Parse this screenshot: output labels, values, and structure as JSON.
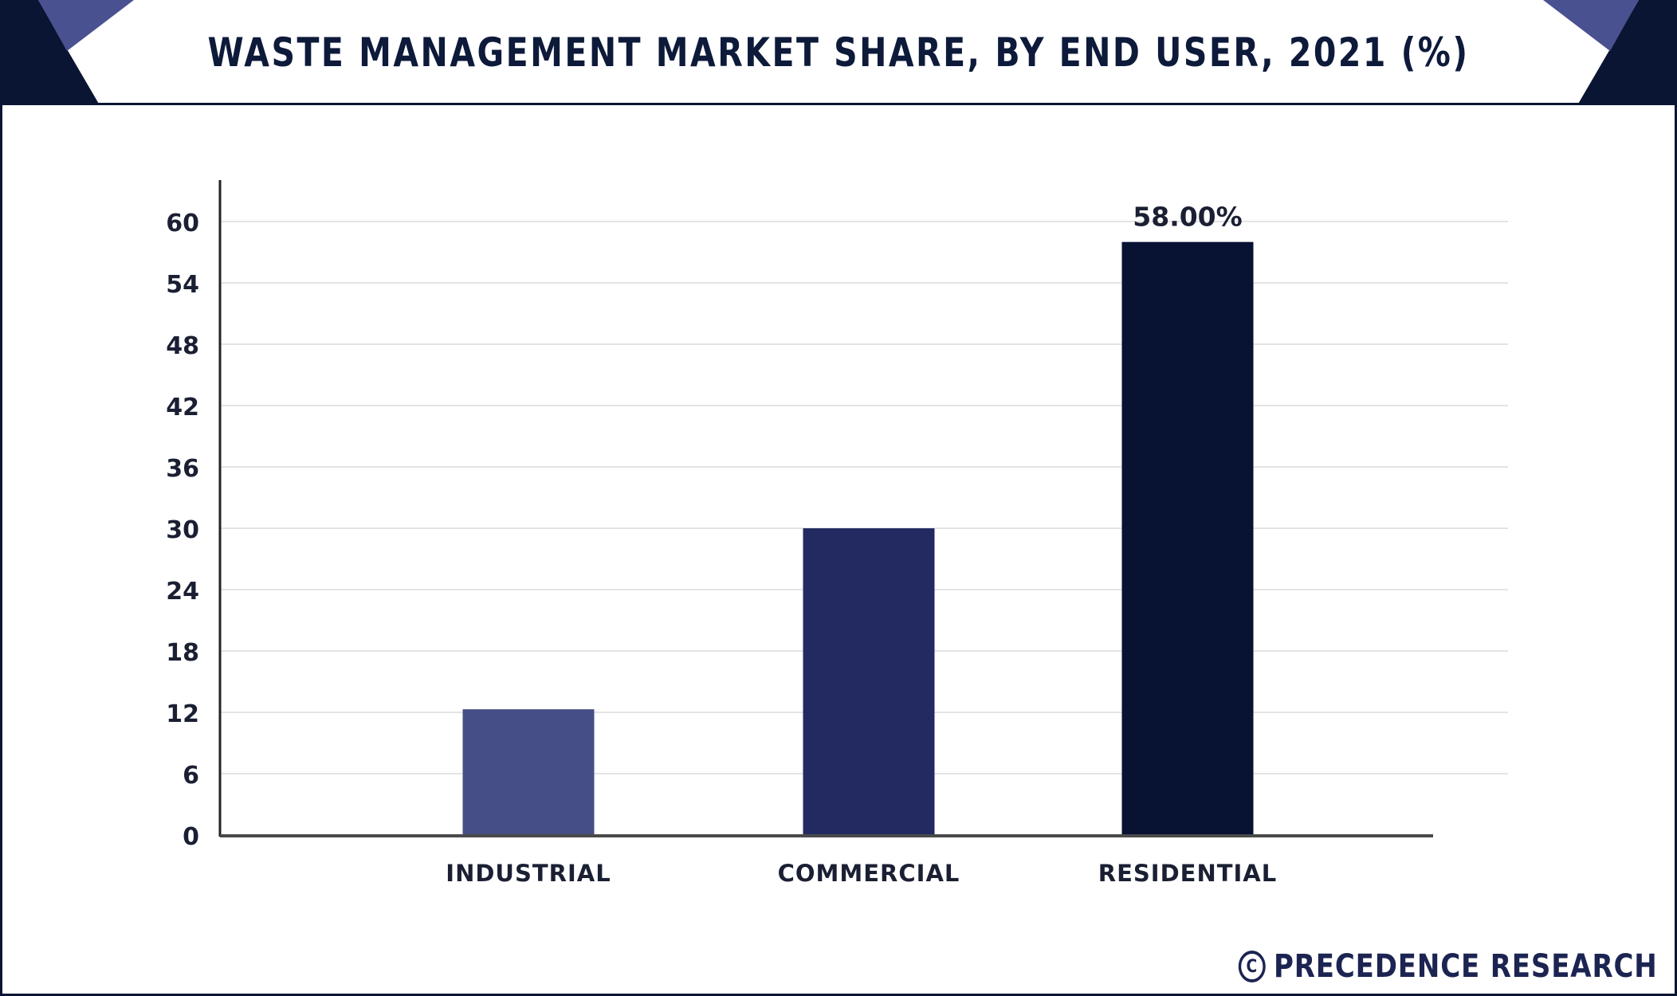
{
  "header": {
    "title": "WASTE MANAGEMENT MARKET SHARE, BY END USER, 2021 (%)"
  },
  "chart_data": {
    "type": "bar",
    "categories": [
      "INDUSTRIAL",
      "COMMERCIAL",
      "RESIDENTIAL"
    ],
    "values": [
      12.3,
      30,
      58
    ],
    "data_labels": [
      "",
      "",
      "58.00%"
    ],
    "title": "WASTE MANAGEMENT MARKET SHARE, BY END USER, 2021 (%)",
    "xlabel": "",
    "ylabel": "",
    "ylim": [
      0,
      60
    ],
    "yticks": [
      0,
      6,
      12,
      18,
      24,
      30,
      36,
      42,
      48,
      54,
      60
    ],
    "grid": true,
    "legend": "none",
    "bar_colors": [
      "#464e87",
      "#232a62",
      "#081233"
    ]
  },
  "footer": {
    "watermark": "PRECEDENCE RESEARCH",
    "icon": "copyright-icon"
  },
  "colors": {
    "frame": "#0a1533",
    "accent": "#4a5190",
    "grid": "#e4e4e4",
    "axis": "#4a4a4a"
  }
}
